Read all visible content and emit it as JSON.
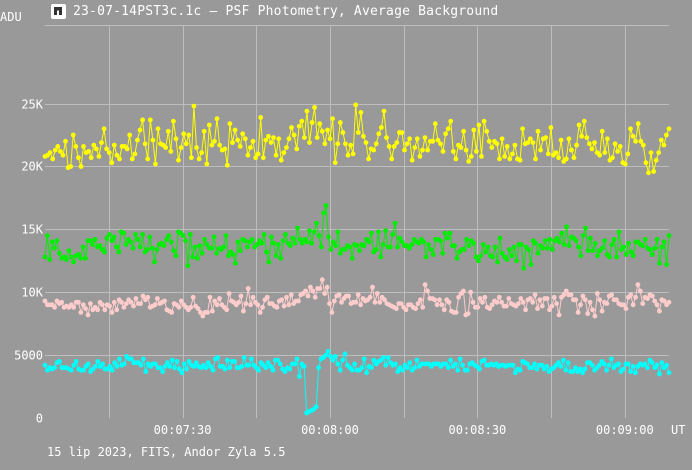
{
  "window": {
    "title": "23-07-14PST3c.1c – PSF Photometry, Average Background",
    "icon": "telescope-app-icon"
  },
  "footer": {
    "info": "15 lip 2023, FITS, Andor Zyla 5.5"
  },
  "colors": {
    "background": "#999999",
    "grid": "#bdbdbd",
    "text": "#ffffff"
  },
  "chart_data": {
    "type": "line",
    "title": "PSF Photometry, Average Background",
    "ylabel": "ADU",
    "xlabel": "UT",
    "ylim": [
      0,
      31250
    ],
    "xlim": [
      "00:07:02",
      "00:09:09"
    ],
    "grid": true,
    "markers": "circle",
    "y_ticks": [
      {
        "value": 0,
        "label": "0"
      },
      {
        "value": 5000,
        "label": "5000"
      },
      {
        "value": 10000,
        "label": "10K"
      },
      {
        "value": 15000,
        "label": "15K"
      },
      {
        "value": 20000,
        "label": "20K"
      },
      {
        "value": 25000,
        "label": "25K"
      }
    ],
    "x_ticks": [
      {
        "value": "00:07:30",
        "label": "00:07:30"
      },
      {
        "value": "00:08:00",
        "label": "00:08:00"
      },
      {
        "value": "00:08:30",
        "label": "00:08:30"
      },
      {
        "value": "00:09:00",
        "label": "00:09:00"
      }
    ],
    "series": [
      {
        "color": "#ffff00",
        "x_start": "00:07:02",
        "x_end": "00:09:09",
        "values": [
          20800,
          20900,
          21100,
          20600,
          21300,
          21600,
          21200,
          20900,
          22000,
          19900,
          20000,
          22500,
          21600,
          20700,
          20000,
          21600,
          21100,
          21200,
          20700,
          21700,
          21400,
          20800,
          21900,
          23000,
          21400,
          21100,
          20300,
          21700,
          20900,
          20600,
          21600,
          21600,
          21400,
          22500,
          20600,
          21000,
          22100,
          22900,
          23700,
          21800,
          20600,
          23700,
          22100,
          20200,
          23000,
          21800,
          21700,
          21500,
          22800,
          21200,
          23600,
          22200,
          20500,
          21500,
          22600,
          21800,
          22500,
          20700,
          24800,
          21500,
          20600,
          21100,
          22800,
          20200,
          23300,
          21700,
          22000,
          23800,
          21700,
          21300,
          21400,
          20100,
          23400,
          21900,
          22900,
          22100,
          21600,
          22600,
          22200,
          20900,
          21500,
          22000,
          20700,
          21000,
          23900,
          20700,
          22100,
          22400,
          21900,
          22300,
          20900,
          22200,
          20500,
          21100,
          21500,
          22200,
          23100,
          22500,
          21400,
          23200,
          23600,
          22300,
          24400,
          21900,
          23500,
          24700,
          22300,
          23400,
          22800,
          21800,
          22900,
          22200,
          23800,
          20300,
          21800,
          23500,
          22700,
          21800,
          20900,
          21700,
          21000,
          24900,
          22700,
          24300,
          22400,
          21900,
          20600,
          21400,
          21300,
          21800,
          22600,
          23100,
          24400,
          22300,
          21600,
          20600,
          21600,
          21900,
          22700,
          22700,
          21300,
          21800,
          22200,
          20500,
          21500,
          22200,
          20800,
          21300,
          22300,
          21300,
          22000,
          22000,
          23400,
          22100,
          21800,
          21200,
          22600,
          23000,
          23600,
          21200,
          20600,
          21700,
          21500,
          22800,
          21300,
          20400,
          20800,
          22900,
          21200,
          23300,
          20800,
          23600,
          22800,
          22000,
          21500,
          22000,
          21800,
          20600,
          22200,
          20800,
          21600,
          20600,
          21000,
          21700,
          20600,
          20500,
          23000,
          21800,
          21900,
          22200,
          21900,
          20600,
          22800,
          21300,
          22200,
          22300,
          21000,
          23100,
          20900,
          21100,
          20700,
          22100,
          20400,
          20600,
          22200,
          21300,
          20700,
          21700,
          23300,
          22400,
          23600,
          22300,
          21800,
          21400,
          21900,
          21100,
          20900,
          22800,
          21100,
          22200,
          20500,
          20700,
          21800,
          21200,
          21600,
          20300,
          20200,
          21000,
          23000,
          22400,
          22000,
          23400,
          22000,
          21700,
          20300,
          19500,
          21100,
          19600,
          20500,
          21100,
          22100,
          21700,
          22500,
          23000
        ]
      },
      {
        "color": "#00ee00",
        "x_start": "00:07:02",
        "x_end": "00:09:09",
        "values": [
          12800,
          14500,
          12600,
          14000,
          13500,
          14100,
          13100,
          12700,
          12800,
          12600,
          13300,
          12800,
          12400,
          12900,
          13000,
          12700,
          13600,
          12700,
          14100,
          14100,
          13800,
          14200,
          13600,
          13700,
          13400,
          13200,
          14300,
          14600,
          14100,
          14400,
          13600,
          13200,
          14800,
          14700,
          13800,
          14200,
          14000,
          13500,
          14600,
          14200,
          13600,
          14600,
          13200,
          13400,
          14400,
          13500,
          12400,
          13400,
          13800,
          13900,
          13700,
          14200,
          14500,
          14000,
          13300,
          12900,
          14800,
          14700,
          14500,
          14100,
          12100,
          14600,
          12800,
          13600,
          12700,
          13700,
          13100,
          14200,
          13800,
          13500,
          13500,
          14400,
          13100,
          13500,
          13400,
          13600,
          14500,
          12900,
          13200,
          13000,
          12300,
          14000,
          13300,
          14200,
          14100,
          13600,
          14000,
          14200,
          13600,
          13800,
          14100,
          13900,
          14600,
          13200,
          12400,
          14400,
          13900,
          12900,
          13800,
          12700,
          14100,
          14600,
          13900,
          13700,
          14300,
          13900,
          15100,
          14200,
          13900,
          14200,
          14000,
          14900,
          13900,
          14800,
          15500,
          14500,
          13600,
          16300,
          16900,
          14400,
          13400,
          14000,
          13700,
          14800,
          13100,
          13400,
          13400,
          13700,
          13600,
          12700,
          13800,
          13700,
          13300,
          13800,
          13700,
          14200,
          14000,
          14700,
          13200,
          13400,
          14800,
          12800,
          13800,
          14900,
          13600,
          13600,
          14600,
          15500,
          13600,
          14300,
          14000,
          13700,
          13700,
          13500,
          13800,
          14200,
          14000,
          13900,
          14200,
          14000,
          12800,
          13800,
          13400,
          13000,
          14200,
          14200,
          14100,
          13100,
          14700,
          14300,
          14700,
          13700,
          13700,
          12700,
          13200,
          13400,
          13400,
          14200,
          13700,
          14100,
          13900,
          12800,
          12500,
          12900,
          13800,
          13200,
          13600,
          12900,
          12800,
          13600,
          12400,
          14300,
          13100,
          12800,
          12600,
          13400,
          12900,
          13600,
          12500,
          13800,
          13800,
          11900,
          13600,
          13400,
          12200,
          14100,
          13900,
          13100,
          13700,
          13500,
          14100,
          13500,
          14200,
          13400,
          14100,
          14300,
          14000,
          14700,
          13800,
          15200,
          13700,
          14400,
          14300,
          14100,
          13600,
          12900,
          14500,
          15100,
          13300,
          14300,
          13300,
          13900,
          12900,
          13300,
          13500,
          14100,
          13000,
          12800,
          13800,
          14200,
          12800,
          14800,
          13400,
          13600,
          13000,
          13900,
          13200,
          12900,
          14000,
          14000,
          13800,
          13700,
          14200,
          13500,
          13400,
          13000,
          13500,
          14200,
          12300,
          13600,
          14000,
          12200,
          14500
        ]
      },
      {
        "color": "#ffcccc",
        "x_start": "00:07:02",
        "x_end": "00:09:09",
        "values": [
          9300,
          9000,
          9000,
          9000,
          8800,
          9300,
          9100,
          9200,
          8800,
          8900,
          8800,
          9000,
          8800,
          9200,
          9200,
          8400,
          9000,
          8700,
          8200,
          9100,
          8600,
          8800,
          8600,
          9200,
          9000,
          8600,
          9000,
          8900,
          8400,
          9200,
          8600,
          9400,
          9200,
          8800,
          9100,
          9400,
          9200,
          8900,
          9500,
          9100,
          9100,
          9700,
          9400,
          9600,
          8800,
          8900,
          9000,
          9500,
          9100,
          9200,
          9300,
          8600,
          8500,
          8400,
          9100,
          9000,
          8800,
          9300,
          9000,
          8800,
          8600,
          8800,
          9600,
          8900,
          8700,
          8400,
          8100,
          8400,
          8400,
          9600,
          8500,
          9300,
          9000,
          9500,
          9000,
          8800,
          8600,
          9900,
          9300,
          9200,
          9000,
          9200,
          9700,
          8500,
          9100,
          10300,
          9000,
          9600,
          9200,
          9000,
          8400,
          8800,
          9400,
          9600,
          9100,
          9100,
          8900,
          8800,
          9300,
          9400,
          8900,
          9600,
          9000,
          9800,
          9100,
          9300,
          9300,
          9800,
          9900,
          10100,
          9700,
          10400,
          10100,
          9600,
          10300,
          10300,
          11000,
          9900,
          10400,
          9100,
          8400,
          9300,
          9700,
          9800,
          9200,
          9500,
          9700,
          9700,
          9100,
          9200,
          9200,
          9800,
          9000,
          9500,
          9300,
          9400,
          9600,
          10400,
          9200,
          9900,
          9200,
          9600,
          9400,
          9100,
          9000,
          8900,
          8800,
          8700,
          9100,
          9100,
          8800,
          8600,
          9000,
          9000,
          8800,
          8700,
          9100,
          9400,
          8800,
          10600,
          10100,
          9500,
          9500,
          9400,
          9000,
          9400,
          9000,
          8600,
          9400,
          9200,
          8500,
          8400,
          8400,
          9600,
          9900,
          10100,
          8200,
          8300,
          10000,
          9200,
          8800,
          8800,
          9500,
          9200,
          9600,
          8800,
          8700,
          9000,
          9300,
          9200,
          9600,
          9200,
          8900,
          8900,
          9500,
          9100,
          9000,
          8900,
          9100,
          9500,
          9200,
          8600,
          9400,
          9500,
          9200,
          9800,
          8700,
          9400,
          8900,
          9500,
          9500,
          8600,
          8900,
          9600,
          9100,
          8200,
          9600,
          9800,
          10100,
          9800,
          9800,
          9400,
          9400,
          8400,
          9000,
          9700,
          9400,
          8300,
          9200,
          8600,
          8100,
          9900,
          9400,
          8500,
          9200,
          9100,
          9700,
          9800,
          9400,
          9400,
          9100,
          9000,
          9000,
          8700,
          9600,
          9800,
          9000,
          9600,
          10600,
          10100,
          9100,
          9600,
          9500,
          9800,
          9700,
          9300,
          9000,
          8500,
          9400,
          9300,
          9000,
          9200
        ]
      },
      {
        "color": "#00ffff",
        "x_start": "00:07:02",
        "x_end": "00:09:09",
        "values": [
          4200,
          3800,
          4000,
          3900,
          4000,
          4400,
          4500,
          4000,
          4000,
          4000,
          3900,
          3800,
          4200,
          4500,
          3900,
          3800,
          3800,
          4100,
          4300,
          3700,
          3900,
          4100,
          4500,
          4100,
          4300,
          3900,
          3900,
          4100,
          3800,
          4400,
          4100,
          4700,
          4200,
          4300,
          4900,
          4700,
          4700,
          4400,
          4400,
          4400,
          4200,
          4700,
          3700,
          4300,
          4100,
          4300,
          4300,
          4000,
          4000,
          3700,
          4100,
          4400,
          4100,
          4600,
          4000,
          4500,
          3900,
          3600,
          4300,
          3900,
          4500,
          4200,
          4100,
          4400,
          4100,
          4000,
          4200,
          4000,
          4400,
          4100,
          3800,
          4700,
          4800,
          4100,
          4100,
          3900,
          4600,
          4000,
          4500,
          4500,
          4000,
          4000,
          4100,
          4800,
          4200,
          4200,
          4700,
          4200,
          4000,
          3800,
          4400,
          4200,
          4000,
          4400,
          4100,
          3800,
          4600,
          4600,
          4300,
          3900,
          3700,
          4000,
          3900,
          4300,
          4300,
          4700,
          3300,
          4300,
          4100,
          400,
          500,
          600,
          700,
          900,
          4000,
          4700,
          4800,
          5000,
          5300,
          4900,
          4600,
          4900,
          4300,
          3800,
          4600,
          5100,
          4200,
          4000,
          3800,
          4300,
          3800,
          3800,
          4000,
          4700,
          3600,
          4100,
          4000,
          4600,
          4300,
          4500,
          4600,
          4800,
          4200,
          4800,
          4400,
          4200,
          4300,
          3700,
          4000,
          3800,
          4200,
          4000,
          4400,
          3800,
          4000,
          4600,
          4100,
          4300,
          4300,
          4300,
          4300,
          4100,
          4300,
          4300,
          4300,
          4100,
          4300,
          4300,
          4000,
          4600,
          4100,
          4300,
          3800,
          4700,
          4200,
          3800,
          3800,
          4300,
          4400,
          4200,
          4100,
          3900,
          4500,
          4600,
          4200,
          4200,
          4300,
          4200,
          4300,
          4100,
          4200,
          4200,
          4100,
          4200,
          4200,
          4200,
          3600,
          3900,
          3800,
          4500,
          4400,
          4300,
          4000,
          4000,
          4300,
          3900,
          4200,
          4200,
          3900,
          4100,
          3700,
          3900,
          4000,
          4200,
          4400,
          4100,
          4600,
          3800,
          4400,
          3700,
          3700,
          4000,
          3700,
          3900,
          3600,
          3900,
          4400,
          4400,
          4200,
          3800,
          4000,
          4200,
          4500,
          4300,
          3800,
          4200,
          4700,
          4000,
          4200,
          4300,
          3700,
          3900,
          4300,
          4300,
          3700,
          4100,
          3600,
          4100,
          4300,
          4200,
          4300,
          4000,
          4600,
          4400,
          4000,
          4200,
          3500,
          4400,
          4000,
          4200,
          3600
        ]
      }
    ]
  }
}
